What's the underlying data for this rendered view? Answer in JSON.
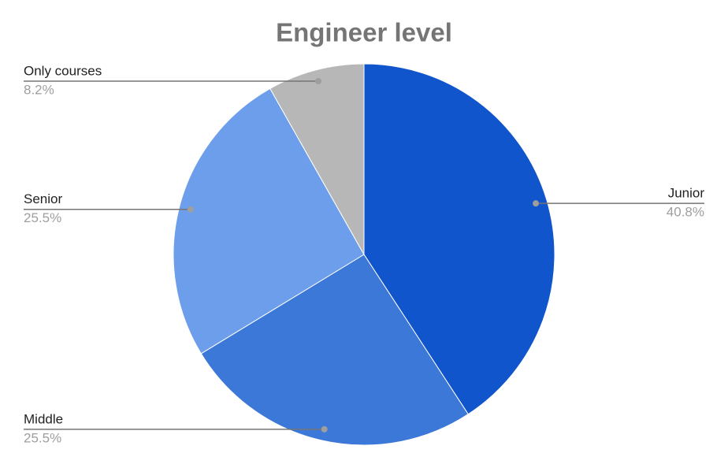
{
  "chart_data": {
    "type": "pie",
    "title": "Engineer level",
    "categories": [
      "Junior",
      "Middle",
      "Senior",
      "Only courses"
    ],
    "values": [
      40.8,
      25.5,
      25.5,
      8.2
    ],
    "value_labels": [
      "40.8%",
      "25.5%",
      "25.5%",
      "8.2%"
    ],
    "colors": [
      "#1155cc",
      "#3c78d8",
      "#6d9eeb",
      "#b7b7b7"
    ]
  }
}
